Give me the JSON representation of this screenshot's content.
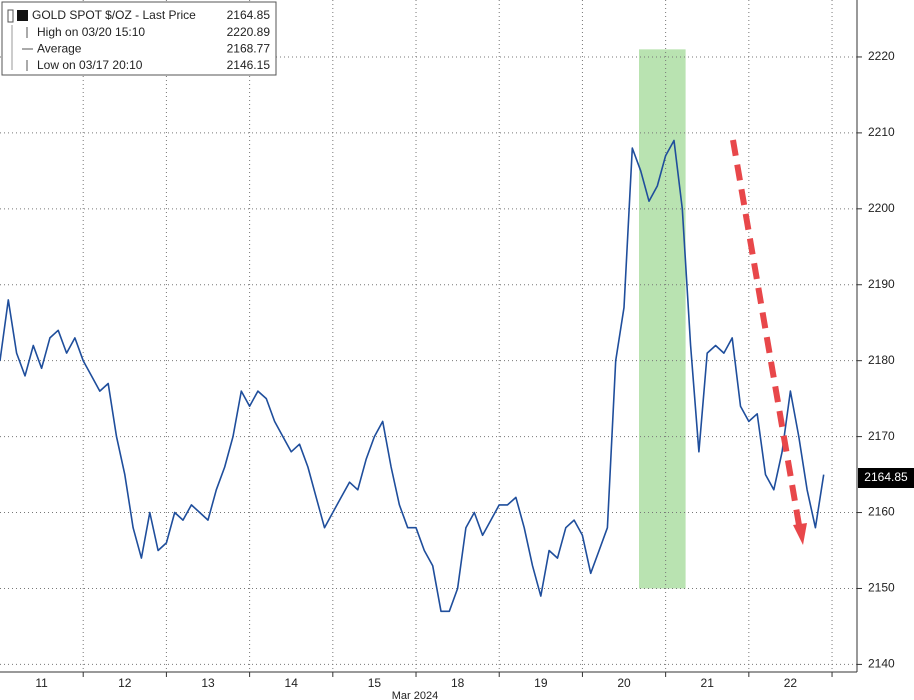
{
  "chart_data": {
    "type": "line",
    "series": [
      {
        "name": "GOLD SPOT $/OZ - Last Price",
        "color": "#1f4e9c",
        "x": [
          0,
          0.1,
          0.2,
          0.3,
          0.4,
          0.5,
          0.6,
          0.7,
          0.8,
          0.9,
          1,
          1.1,
          1.2,
          1.3,
          1.4,
          1.5,
          1.6,
          1.7,
          1.8,
          1.9,
          2,
          2.1,
          2.2,
          2.3,
          2.4,
          2.5,
          2.6,
          2.7,
          2.8,
          2.9,
          3,
          3.1,
          3.2,
          3.3,
          3.4,
          3.5,
          3.6,
          3.7,
          3.8,
          3.9,
          4,
          4.1,
          4.2,
          4.3,
          4.4,
          4.5,
          4.6,
          4.7,
          4.8,
          4.9,
          5,
          5.1,
          5.2,
          5.3,
          5.4,
          5.5,
          5.6,
          5.7,
          5.8,
          5.9,
          6,
          6.1,
          6.2,
          6.3,
          6.4,
          6.5,
          6.6,
          6.7,
          6.8,
          6.9,
          7,
          7.1,
          7.2,
          7.3,
          7.4,
          7.5,
          7.6,
          7.7,
          7.8,
          7.9,
          8,
          8.1,
          8.2,
          8.3,
          8.4,
          8.5,
          8.6,
          8.7,
          8.8,
          8.9,
          9,
          9.1,
          9.2,
          9.3,
          9.4,
          9.5,
          9.6,
          9.7,
          9.8,
          9.9
        ],
        "values": [
          2180,
          2188,
          2181,
          2178,
          2182,
          2179,
          2183,
          2184,
          2181,
          2183,
          2180,
          2178,
          2176,
          2177,
          2170,
          2165,
          2158,
          2154,
          2160,
          2155,
          2156,
          2160,
          2159,
          2161,
          2160,
          2159,
          2163,
          2166,
          2170,
          2176,
          2174,
          2176,
          2175,
          2172,
          2170,
          2168,
          2169,
          2166,
          2162,
          2158,
          2160,
          2162,
          2164,
          2163,
          2167,
          2170,
          2172,
          2166,
          2161,
          2158,
          2158,
          2155,
          2153,
          2147,
          2147,
          2150,
          2158,
          2160,
          2157,
          2159,
          2161,
          2161,
          2162,
          2158,
          2153,
          2149,
          2155,
          2154,
          2158,
          2159,
          2157,
          2152,
          2155,
          2158,
          2180,
          2187,
          2208,
          2205,
          2201,
          2203,
          2207,
          2209,
          2200,
          2182,
          2168,
          2181,
          2182,
          2181,
          2183,
          2174,
          2172,
          2173,
          2165,
          2163,
          2168,
          2176,
          2170,
          2163,
          2158,
          2165
        ]
      }
    ],
    "xlim": [
      0,
      10.3
    ],
    "xticks": [
      {
        "value": 0.5,
        "label": "11"
      },
      {
        "value": 1.5,
        "label": "12"
      },
      {
        "value": 2.5,
        "label": "13"
      },
      {
        "value": 3.5,
        "label": "14"
      },
      {
        "value": 4.5,
        "label": "15"
      },
      {
        "value": 5.5,
        "label": "18"
      },
      {
        "value": 6.5,
        "label": "19"
      },
      {
        "value": 7.5,
        "label": "20"
      },
      {
        "value": 8.5,
        "label": "21"
      },
      {
        "value": 9.5,
        "label": "22"
      }
    ],
    "x_axis_label": "Mar 2024",
    "ylim": [
      2139,
      2227.5
    ],
    "yticks": [
      2140,
      2150,
      2160,
      2170,
      2180,
      2190,
      2200,
      2210,
      2220
    ],
    "grid": true,
    "last_price": 2164.85,
    "highlight": {
      "color": "#b9e3b1",
      "x": [
        7.68,
        8.24
      ],
      "y": [
        2150,
        2221
      ]
    },
    "legend_stats": [
      {
        "label": "High on 03/20 15:10",
        "value": 2220.89
      },
      {
        "label": "Average",
        "value": 2168.77
      },
      {
        "label": "Low on 03/17 20:10",
        "value": 2146.15
      }
    ]
  }
}
